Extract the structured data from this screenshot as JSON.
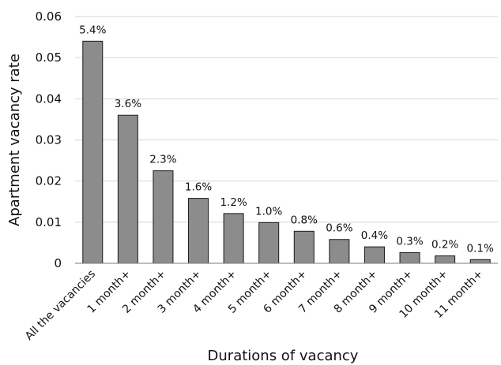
{
  "chart_data": {
    "type": "bar",
    "categories": [
      "All the vacancies",
      "1 month+",
      "2 month+",
      "3 month+",
      "4 month+",
      "5 month+",
      "6 month+",
      "7 month+",
      "8 month+",
      "9 month+",
      "10 month+",
      "11 month+"
    ],
    "values": [
      0.054,
      0.036,
      0.0225,
      0.0158,
      0.0121,
      0.0099,
      0.0078,
      0.0058,
      0.004,
      0.0026,
      0.0018,
      0.0009
    ],
    "data_labels": [
      "5.4%",
      "3.6%",
      "2.3%",
      "1.6%",
      "1.2%",
      "1.0%",
      "0.8%",
      "0.6%",
      "0.4%",
      "0.3%",
      "0.2%",
      "0.1%"
    ],
    "xlabel": "Durations of vacancy",
    "ylabel": "Apartment vacancy rate",
    "ylim": [
      0,
      0.06
    ],
    "yticks": [
      0,
      0.01,
      0.02,
      0.03,
      0.04,
      0.05,
      0.06
    ],
    "ytick_labels": [
      "0",
      "0.01",
      "0.02",
      "0.03",
      "0.04",
      "0.05",
      "0.06"
    ],
    "grid": true,
    "bar_color": "#8c8c8c",
    "bar_edge_color": "#1a1a1a",
    "grid_color": "#d4d4d4",
    "axis_color": "#7a7a7a"
  }
}
